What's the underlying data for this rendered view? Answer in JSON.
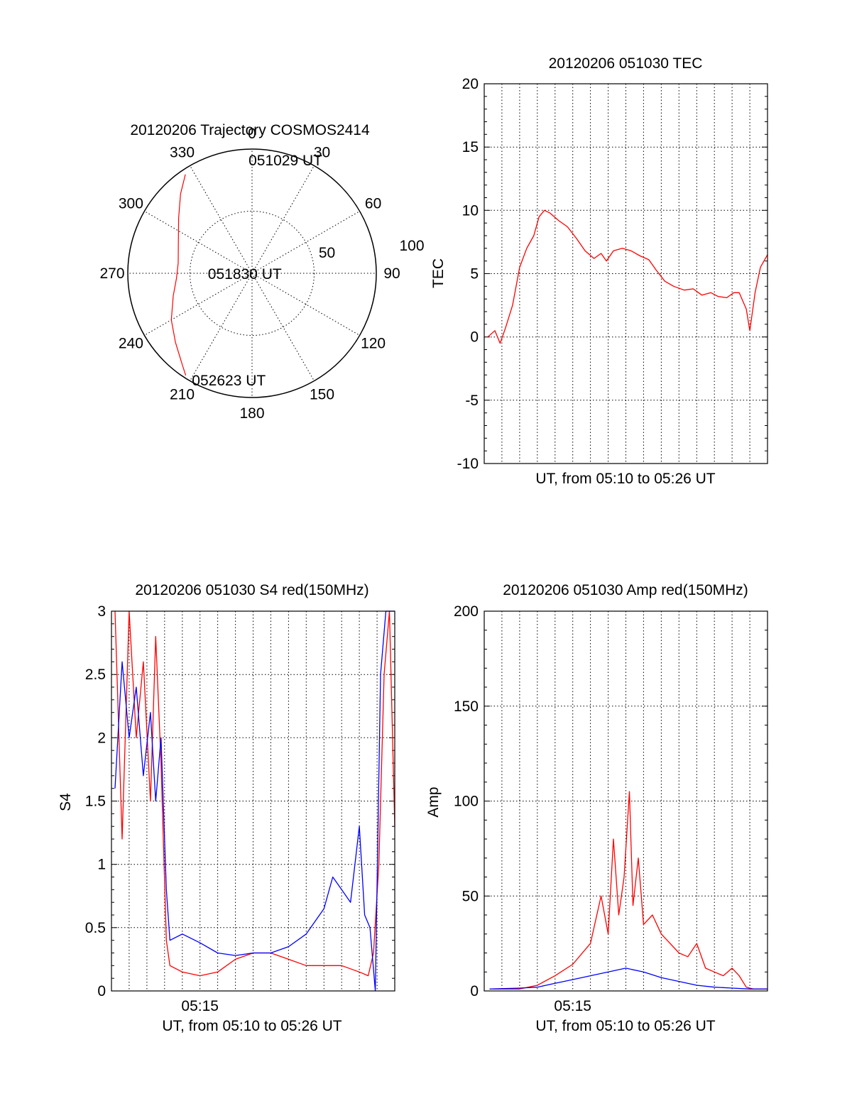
{
  "colors": {
    "red": "#ff0000",
    "blue": "#0000ff",
    "axis": "#000000",
    "background": "#ffffff"
  },
  "chart_data": [
    {
      "id": "polar",
      "type": "polar-trajectory",
      "title": "20120206 Trajectory COSMOS2414",
      "azimuth_labels": [
        "0",
        "30",
        "60",
        "90",
        "120",
        "150",
        "180",
        "210",
        "240",
        "270",
        "300",
        "330"
      ],
      "radial_labels": [
        "50",
        "100"
      ],
      "radial_ticks": [
        50,
        100
      ],
      "rmax": 100,
      "grid": true,
      "annotations": [
        {
          "text": "051029 UT",
          "az": 11,
          "r": 93
        },
        {
          "text": "051830 UT",
          "az": 270,
          "r": 15
        },
        {
          "text": "052623 UT",
          "az": 198,
          "r": 90
        }
      ],
      "series": [
        {
          "color": "red",
          "points": [
            [
              326,
              96
            ],
            [
              318,
              86
            ],
            [
              307,
              74
            ],
            [
              292,
              64
            ],
            [
              278,
              60
            ],
            [
              266,
              61
            ],
            [
              254,
              66
            ],
            [
              240,
              75
            ],
            [
              228,
              83
            ],
            [
              217,
              93
            ],
            [
              213,
              98
            ]
          ]
        }
      ]
    },
    {
      "id": "tec",
      "type": "line",
      "title": "20120206 051030 TEC",
      "xlabel": "UT, from 05:10 to 05:26 UT",
      "ylabel": "TEC",
      "xlim": [
        0,
        16
      ],
      "ylim": [
        -10,
        20
      ],
      "yticks": [
        -10,
        -5,
        0,
        5,
        10,
        15,
        20
      ],
      "xticks": [],
      "grid": true,
      "series": [
        {
          "color": "red",
          "points": [
            [
              0.2,
              0
            ],
            [
              0.6,
              0.5
            ],
            [
              0.9,
              -0.5
            ],
            [
              1.2,
              0.7
            ],
            [
              1.6,
              2.5
            ],
            [
              2.0,
              5.5
            ],
            [
              2.4,
              7.0
            ],
            [
              2.8,
              8.0
            ],
            [
              3.1,
              9.5
            ],
            [
              3.4,
              10.0
            ],
            [
              3.7,
              9.8
            ],
            [
              4.2,
              9.2
            ],
            [
              4.7,
              8.7
            ],
            [
              5.2,
              7.8
            ],
            [
              5.7,
              6.8
            ],
            [
              6.2,
              6.2
            ],
            [
              6.6,
              6.6
            ],
            [
              6.9,
              6.0
            ],
            [
              7.3,
              6.8
            ],
            [
              7.8,
              7.0
            ],
            [
              8.3,
              6.8
            ],
            [
              8.8,
              6.4
            ],
            [
              9.3,
              6.1
            ],
            [
              9.7,
              5.3
            ],
            [
              10.2,
              4.4
            ],
            [
              10.7,
              4.0
            ],
            [
              11.3,
              3.7
            ],
            [
              11.8,
              3.8
            ],
            [
              12.3,
              3.3
            ],
            [
              12.8,
              3.5
            ],
            [
              13.2,
              3.2
            ],
            [
              13.7,
              3.1
            ],
            [
              14.1,
              3.5
            ],
            [
              14.4,
              3.5
            ],
            [
              14.8,
              2.2
            ],
            [
              15.0,
              0.5
            ],
            [
              15.3,
              3.5
            ],
            [
              15.6,
              5.5
            ],
            [
              16.0,
              6.5
            ]
          ]
        }
      ]
    },
    {
      "id": "s4",
      "type": "line",
      "title": "20120206 051030 S4 red(150MHz)",
      "xlabel": "UT, from 05:10 to 05:26 UT",
      "ylabel": "S4",
      "xlim": [
        0,
        16
      ],
      "ylim": [
        0,
        3
      ],
      "yticks": [
        0,
        0.5,
        1,
        1.5,
        2,
        2.5,
        3
      ],
      "ytick_labels": [
        "0",
        "0.5",
        "1",
        "1.5",
        "2",
        "2.5",
        "3"
      ],
      "xticks": [
        5
      ],
      "xtick_labels": [
        "05:15"
      ],
      "grid": true,
      "series": [
        {
          "color": "red",
          "points": [
            [
              0.2,
              3.0
            ],
            [
              0.6,
              1.2
            ],
            [
              1.0,
              3.0
            ],
            [
              1.4,
              2.0
            ],
            [
              1.8,
              2.6
            ],
            [
              2.2,
              1.5
            ],
            [
              2.5,
              2.8
            ],
            [
              2.8,
              1.8
            ],
            [
              3.1,
              0.4
            ],
            [
              3.3,
              0.2
            ],
            [
              4.0,
              0.15
            ],
            [
              5.0,
              0.12
            ],
            [
              6.0,
              0.15
            ],
            [
              7.0,
              0.25
            ],
            [
              8.0,
              0.3
            ],
            [
              9.0,
              0.3
            ],
            [
              10.0,
              0.25
            ],
            [
              11.0,
              0.2
            ],
            [
              12.0,
              0.2
            ],
            [
              13.0,
              0.2
            ],
            [
              14.0,
              0.15
            ],
            [
              14.5,
              0.12
            ],
            [
              14.8,
              0.3
            ],
            [
              15.1,
              1.0
            ],
            [
              15.4,
              2.5
            ],
            [
              15.7,
              3.0
            ],
            [
              16.0,
              1.3
            ]
          ]
        },
        {
          "color": "blue",
          "points": [
            [
              0.2,
              1.6
            ],
            [
              0.6,
              2.6
            ],
            [
              1.0,
              2.0
            ],
            [
              1.4,
              2.4
            ],
            [
              1.8,
              1.7
            ],
            [
              2.2,
              2.2
            ],
            [
              2.5,
              1.5
            ],
            [
              2.8,
              2.0
            ],
            [
              3.1,
              0.8
            ],
            [
              3.3,
              0.4
            ],
            [
              4.0,
              0.45
            ],
            [
              5.0,
              0.38
            ],
            [
              6.0,
              0.3
            ],
            [
              7.0,
              0.28
            ],
            [
              8.0,
              0.3
            ],
            [
              9.0,
              0.3
            ],
            [
              10.0,
              0.35
            ],
            [
              11.0,
              0.45
            ],
            [
              12.0,
              0.65
            ],
            [
              12.5,
              0.9
            ],
            [
              13.0,
              0.8
            ],
            [
              13.5,
              0.7
            ],
            [
              14.0,
              1.3
            ],
            [
              14.3,
              0.6
            ],
            [
              14.6,
              0.5
            ],
            [
              14.9,
              0.0
            ],
            [
              15.2,
              2.5
            ],
            [
              15.5,
              3.0
            ],
            [
              16.0,
              3.0
            ]
          ]
        }
      ]
    },
    {
      "id": "amp",
      "type": "line",
      "title": "20120206 051030 Amp red(150MHz)",
      "xlabel": "UT, from 05:10 to 05:26 UT",
      "ylabel": "Amp",
      "xlim": [
        0,
        16
      ],
      "ylim": [
        0,
        200
      ],
      "yticks": [
        0,
        50,
        100,
        150,
        200
      ],
      "xticks": [
        5
      ],
      "xtick_labels": [
        "05:15"
      ],
      "grid": true,
      "series": [
        {
          "color": "red",
          "points": [
            [
              0.5,
              1
            ],
            [
              2.0,
              1
            ],
            [
              3.0,
              3
            ],
            [
              4.0,
              8
            ],
            [
              5.0,
              14
            ],
            [
              6.0,
              25
            ],
            [
              6.6,
              50
            ],
            [
              7.0,
              30
            ],
            [
              7.3,
              80
            ],
            [
              7.6,
              40
            ],
            [
              7.9,
              60
            ],
            [
              8.2,
              105
            ],
            [
              8.4,
              45
            ],
            [
              8.7,
              70
            ],
            [
              9.0,
              35
            ],
            [
              9.5,
              40
            ],
            [
              10.0,
              30
            ],
            [
              10.5,
              25
            ],
            [
              11.0,
              20
            ],
            [
              11.5,
              18
            ],
            [
              12.0,
              25
            ],
            [
              12.5,
              12
            ],
            [
              13.0,
              10
            ],
            [
              13.5,
              8
            ],
            [
              14.0,
              12
            ],
            [
              14.4,
              8
            ],
            [
              14.8,
              2
            ],
            [
              15.2,
              1
            ],
            [
              16.0,
              1
            ]
          ]
        },
        {
          "color": "blue",
          "points": [
            [
              0.3,
              1
            ],
            [
              2.0,
              1.5
            ],
            [
              3.0,
              2
            ],
            [
              4.0,
              4
            ],
            [
              5.0,
              6
            ],
            [
              6.0,
              8
            ],
            [
              7.0,
              10
            ],
            [
              8.0,
              12
            ],
            [
              9.0,
              10
            ],
            [
              10.0,
              7
            ],
            [
              11.0,
              5
            ],
            [
              12.0,
              3
            ],
            [
              13.0,
              2
            ],
            [
              14.0,
              1.5
            ],
            [
              15.0,
              1
            ],
            [
              16.0,
              1
            ]
          ]
        }
      ]
    }
  ]
}
